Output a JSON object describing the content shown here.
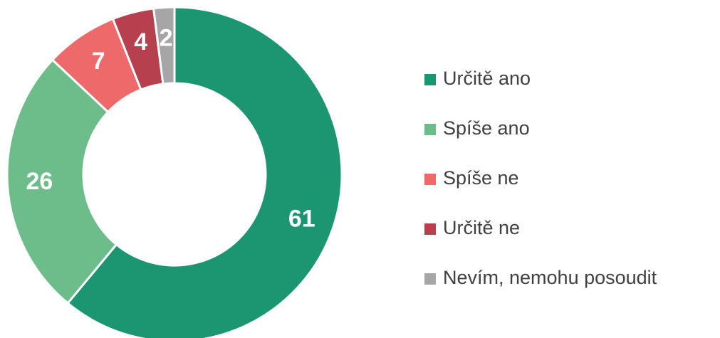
{
  "chart_data": {
    "type": "donut",
    "categories": [
      "Určitě ano",
      "Spíše ano",
      "Spíše ne",
      "Určitě ne",
      "Nevím, nemohu posoudit"
    ],
    "values": [
      61,
      26,
      7,
      4,
      2
    ],
    "colors": [
      "#1c9670",
      "#6dbd8a",
      "#ee6a6a",
      "#b6404e",
      "#a6a6a6"
    ],
    "legend": "right"
  }
}
